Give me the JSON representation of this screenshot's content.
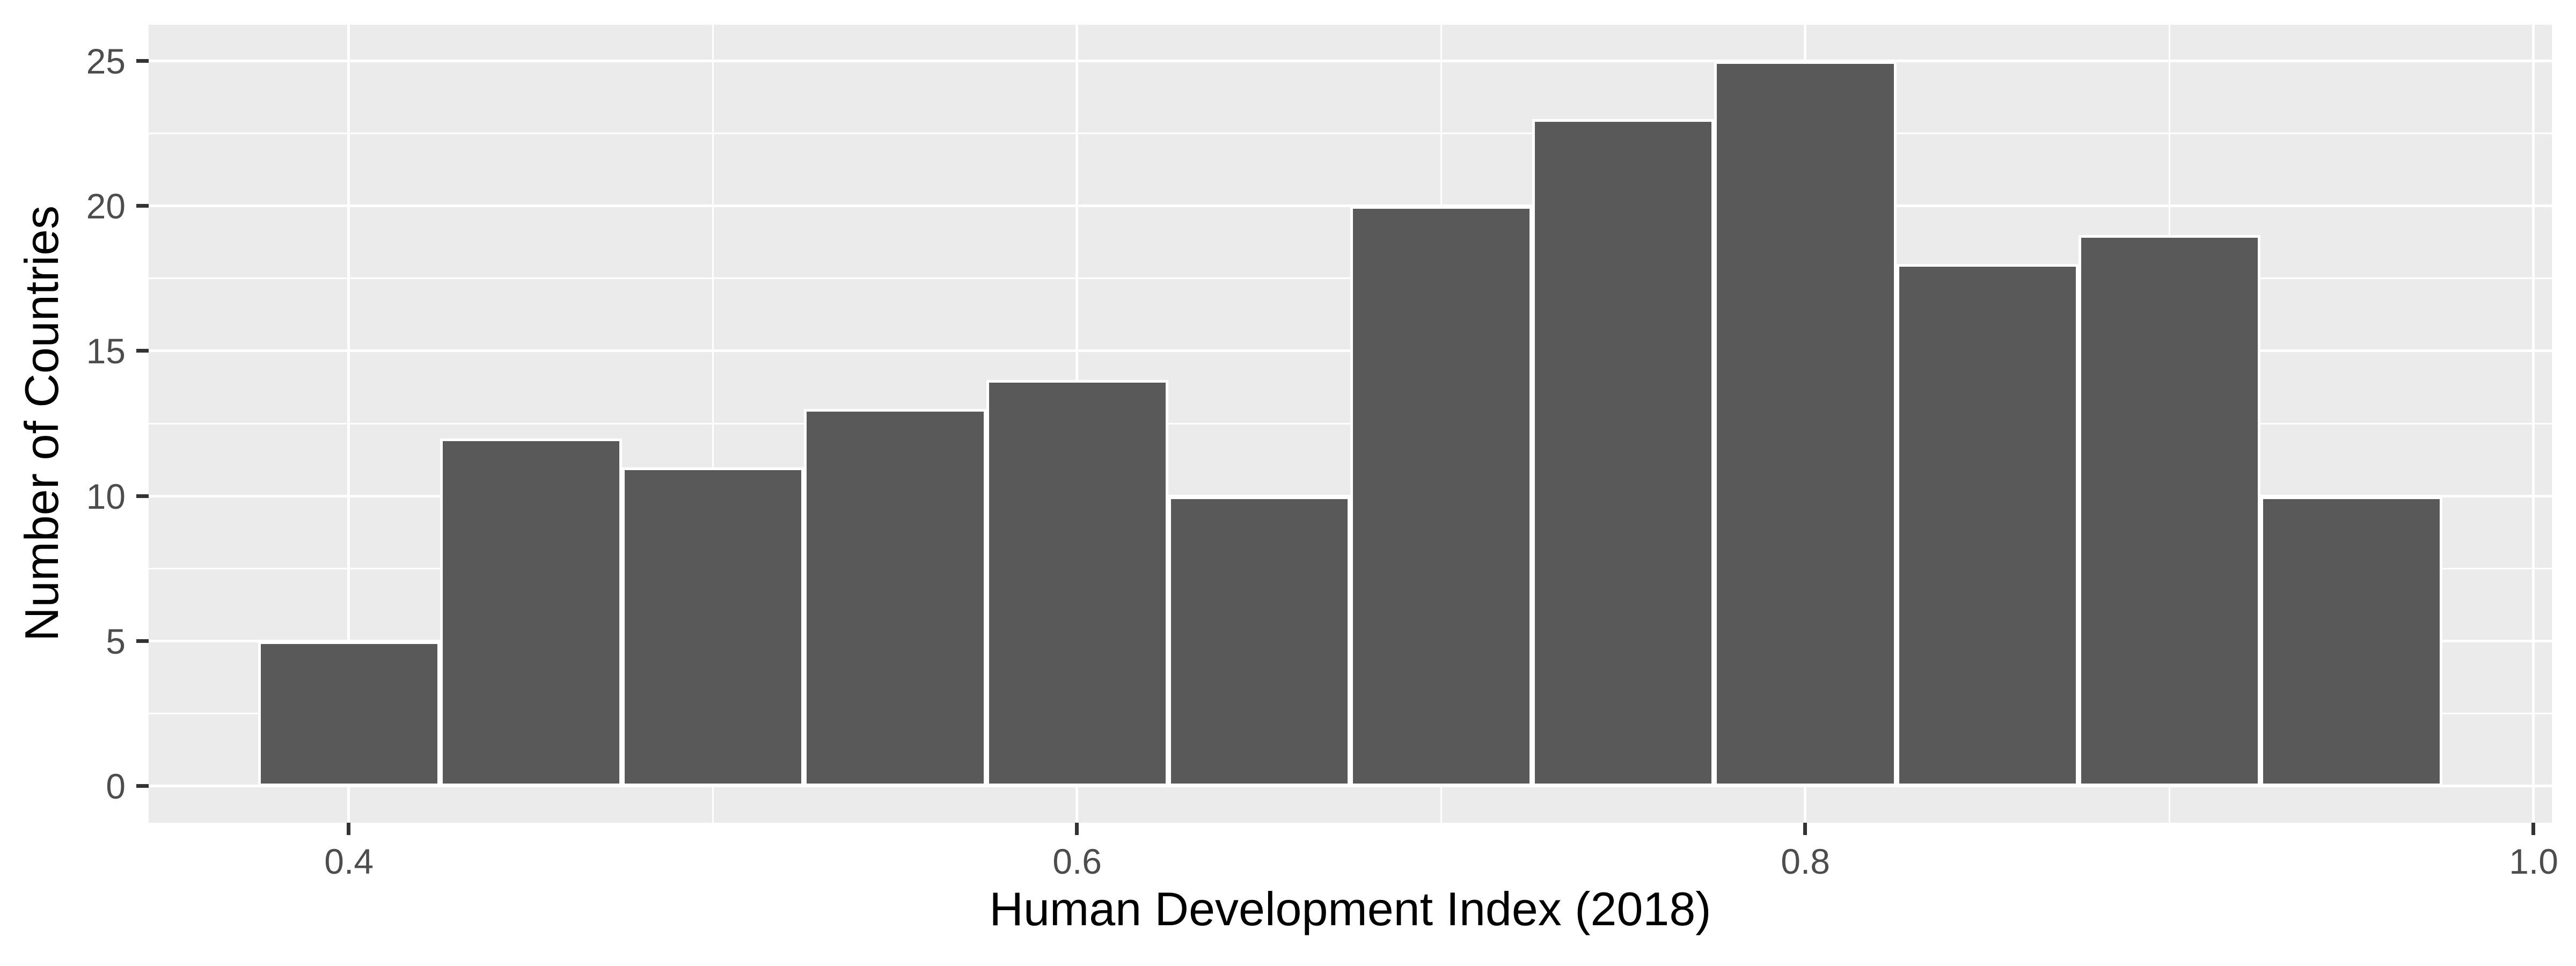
{
  "figure": {
    "background": "#FFFFFF"
  },
  "chart_data": {
    "type": "histogram",
    "title": "",
    "xlabel": "Human Development Index (2018)",
    "ylabel": "Number of Countries",
    "bins": {
      "start": 0.375,
      "width": 0.05
    },
    "bin_edges": [
      0.375,
      0.425,
      0.475,
      0.525,
      0.575,
      0.625,
      0.675,
      0.725,
      0.775,
      0.825,
      0.875,
      0.925,
      0.975
    ],
    "counts": [
      5,
      12,
      11,
      13,
      14,
      10,
      20,
      23,
      25,
      18,
      19,
      10
    ],
    "x_axis": {
      "ticks": [
        0.4,
        0.6,
        0.8,
        1.0
      ],
      "tick_labels": [
        "0.4",
        "0.6",
        "0.8",
        "1.0"
      ],
      "minor_ticks": [
        0.5,
        0.7,
        0.9
      ],
      "lim": [
        0.345,
        1.005
      ]
    },
    "y_axis": {
      "ticks": [
        0,
        5,
        10,
        15,
        20,
        25
      ],
      "tick_labels": [
        "0",
        "5",
        "10",
        "15",
        "20",
        "25"
      ],
      "minor_ticks": [
        2.5,
        7.5,
        12.5,
        17.5,
        22.5
      ],
      "lim": [
        -1.25,
        26.25
      ]
    },
    "grid": "on",
    "legend": "none",
    "style": {
      "panel_bg": "#EBEBEB",
      "grid_color": "#FFFFFF",
      "bar_fill": "#595959",
      "bar_outline": "#FFFFFF",
      "tick_color": "#333333",
      "tick_label_color": "#4D4D4D",
      "axis_title_color": "#000000"
    }
  }
}
